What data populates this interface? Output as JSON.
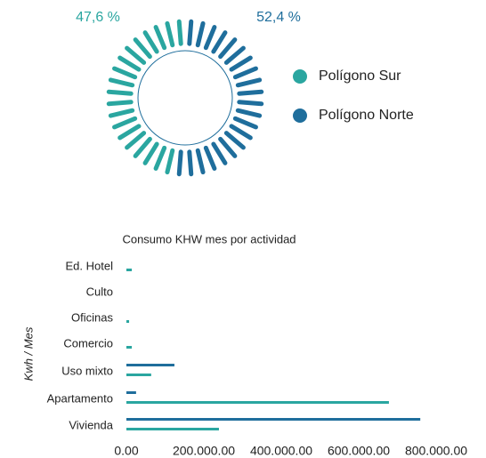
{
  "chart_data": [
    {
      "type": "radial-dash",
      "series": [
        {
          "name": "Polígono Sur",
          "color": "#2aa6a0",
          "values": [
            47.6
          ],
          "value_labels": [
            "47,6 %"
          ]
        },
        {
          "name": "Polígono Norte",
          "color": "#1f6e9c",
          "values": [
            52.4
          ],
          "value_labels": [
            "52,4 %"
          ]
        }
      ]
    },
    {
      "type": "hbar",
      "title": "Consumo KHW mes por actividad",
      "y_label": "Kwh / Mes",
      "categories": [
        "Ed. Hotel",
        "Culto",
        "Oficinas",
        "Comercio",
        "Uso mixto",
        "Apartamento",
        "Vivienda"
      ],
      "series": [
        {
          "name": "Polígono Norte",
          "color": "#1f6e9c",
          "values": [
            0,
            0,
            0,
            0,
            124000,
            25000,
            759000
          ]
        },
        {
          "name": "Polígono Sur",
          "color": "#2aa6a0",
          "values": [
            14000,
            0,
            7000,
            14000,
            64000,
            678000,
            239000
          ]
        }
      ],
      "xlim": [
        0,
        800000
      ],
      "xticks": [
        {
          "value": 0,
          "label": "0.00"
        },
        {
          "value": 200000,
          "label": "200.000.00"
        },
        {
          "value": 400000,
          "label": "400.000.00"
        },
        {
          "value": 600000,
          "label": "600.000.00"
        },
        {
          "value": 800000,
          "label": "800.000.00"
        }
      ]
    }
  ]
}
